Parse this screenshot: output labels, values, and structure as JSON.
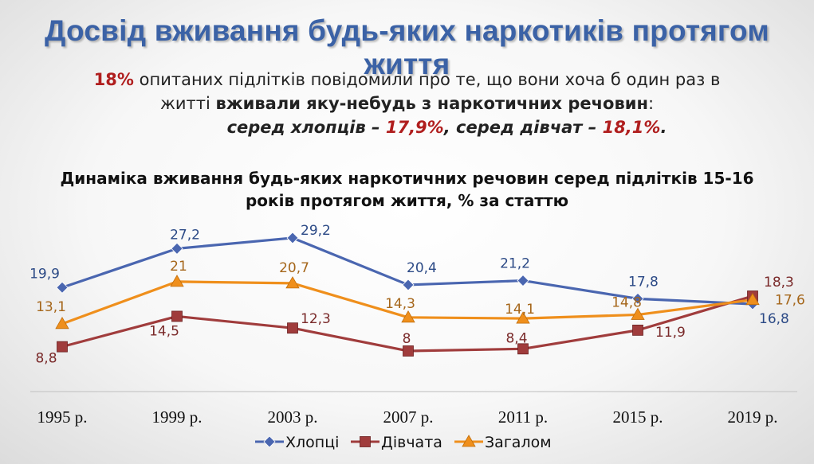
{
  "header": {
    "title": "Досвід вживання будь-яких наркотиків протягом життя"
  },
  "summary": {
    "line1_pct": "18%",
    "line1_text": " опитаних підлітків повідомили про те, що вони хоча б один раз в",
    "line2_text": "житті ",
    "line2_bold": "вживали яку-небудь з наркотичних речовин",
    "line2_end": ":",
    "line3_boys_label": "серед хлопців – ",
    "line3_boys_value": "17,9%",
    "line3_girls_label": ", серед дівчат – ",
    "line3_girls_value": "18,1%",
    "line3_end": "."
  },
  "chart_data": {
    "type": "line",
    "title_line1": "Динаміка вживання будь-яких наркотичних речовин серед підлітків 15-16",
    "title_line2": "років протягом життя, % за статтю",
    "categories": [
      "1995 р.",
      "1999 р.",
      "2003 р.",
      "2007 р.",
      "2011 р.",
      "2015 р.",
      "2019 р."
    ],
    "series": [
      {
        "name": "Хлопці",
        "marker": "diamond",
        "color": "#4a66b0",
        "label_color": "#2c4a86",
        "values": [
          19.9,
          27.2,
          29.2,
          20.4,
          21.2,
          17.8,
          16.8
        ],
        "labels": [
          "19,9",
          "27,2",
          "29,2",
          "20,4",
          "21,2",
          "17,8",
          "16,8"
        ]
      },
      {
        "name": "Дівчата",
        "marker": "square",
        "color": "#a03c3c",
        "label_color": "#7a2a2a",
        "values": [
          8.8,
          14.5,
          12.3,
          8,
          8.4,
          11.9,
          18.3
        ],
        "labels": [
          "8,8",
          "14,5",
          "12,3",
          "8",
          "8,4",
          "11,9",
          "18,3"
        ]
      },
      {
        "name": "Загалом",
        "marker": "triangle",
        "color": "#ef8f1c",
        "label_color": "#a5661a",
        "values": [
          13.1,
          21,
          20.7,
          14.3,
          14.1,
          14.8,
          17.6
        ],
        "labels": [
          "13,1",
          "21",
          "20,7",
          "14,3",
          "14,1",
          "14,8",
          "17,6"
        ]
      }
    ],
    "legend_position": "bottom",
    "grid": false
  }
}
